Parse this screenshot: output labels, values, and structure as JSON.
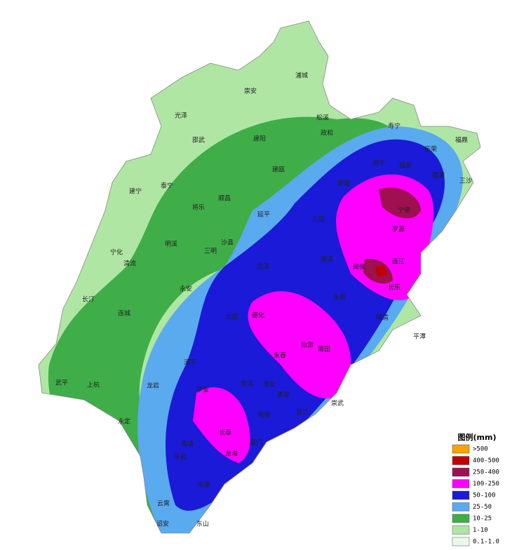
{
  "legend": {
    "title": "图例(mm)",
    "items": [
      {
        "label": ">500",
        "color": "#f7a400"
      },
      {
        "label": "400-500",
        "color": "#c00000"
      },
      {
        "label": "250-400",
        "color": "#9e1050"
      },
      {
        "label": "100-250",
        "color": "#ff00ff"
      },
      {
        "label": "50-100",
        "color": "#1a1ad8"
      },
      {
        "label": "25-50",
        "color": "#5aaaf0"
      },
      {
        "label": "10-25",
        "color": "#3fae48"
      },
      {
        "label": "1-10",
        "color": "#b0e6a4"
      },
      {
        "label": "0.1-1.0",
        "color": "#eaf8ea"
      }
    ]
  },
  "places": [
    "浦城",
    "崇安",
    "光泽",
    "松溪",
    "政和",
    "邵武",
    "建阳",
    "寿宁",
    "福鼎",
    "柘荣",
    "建瓯",
    "周宁",
    "福安",
    "霞浦",
    "三沙",
    "建宁",
    "泰宁",
    "将乐",
    "顺昌",
    "屏南",
    "宁德",
    "罗源",
    "延平",
    "古田",
    "明溪",
    "三明",
    "沙县",
    "宁化",
    "清流",
    "尤溪",
    "闽清",
    "闽侯",
    "连江",
    "长乐",
    "永安",
    "长汀",
    "连城",
    "大田",
    "德化",
    "永泰",
    "福清",
    "平潭",
    "漳平",
    "仙游",
    "莆田",
    "永春",
    "安溪",
    "南安",
    "惠安",
    "晋江",
    "崇武",
    "武平",
    "上杭",
    "龙岩",
    "华安",
    "同安",
    "长泰",
    "厦门",
    "南靖",
    "龙海",
    "平和",
    "漳浦",
    "永定",
    "云霄",
    "诏安",
    "东山"
  ]
}
